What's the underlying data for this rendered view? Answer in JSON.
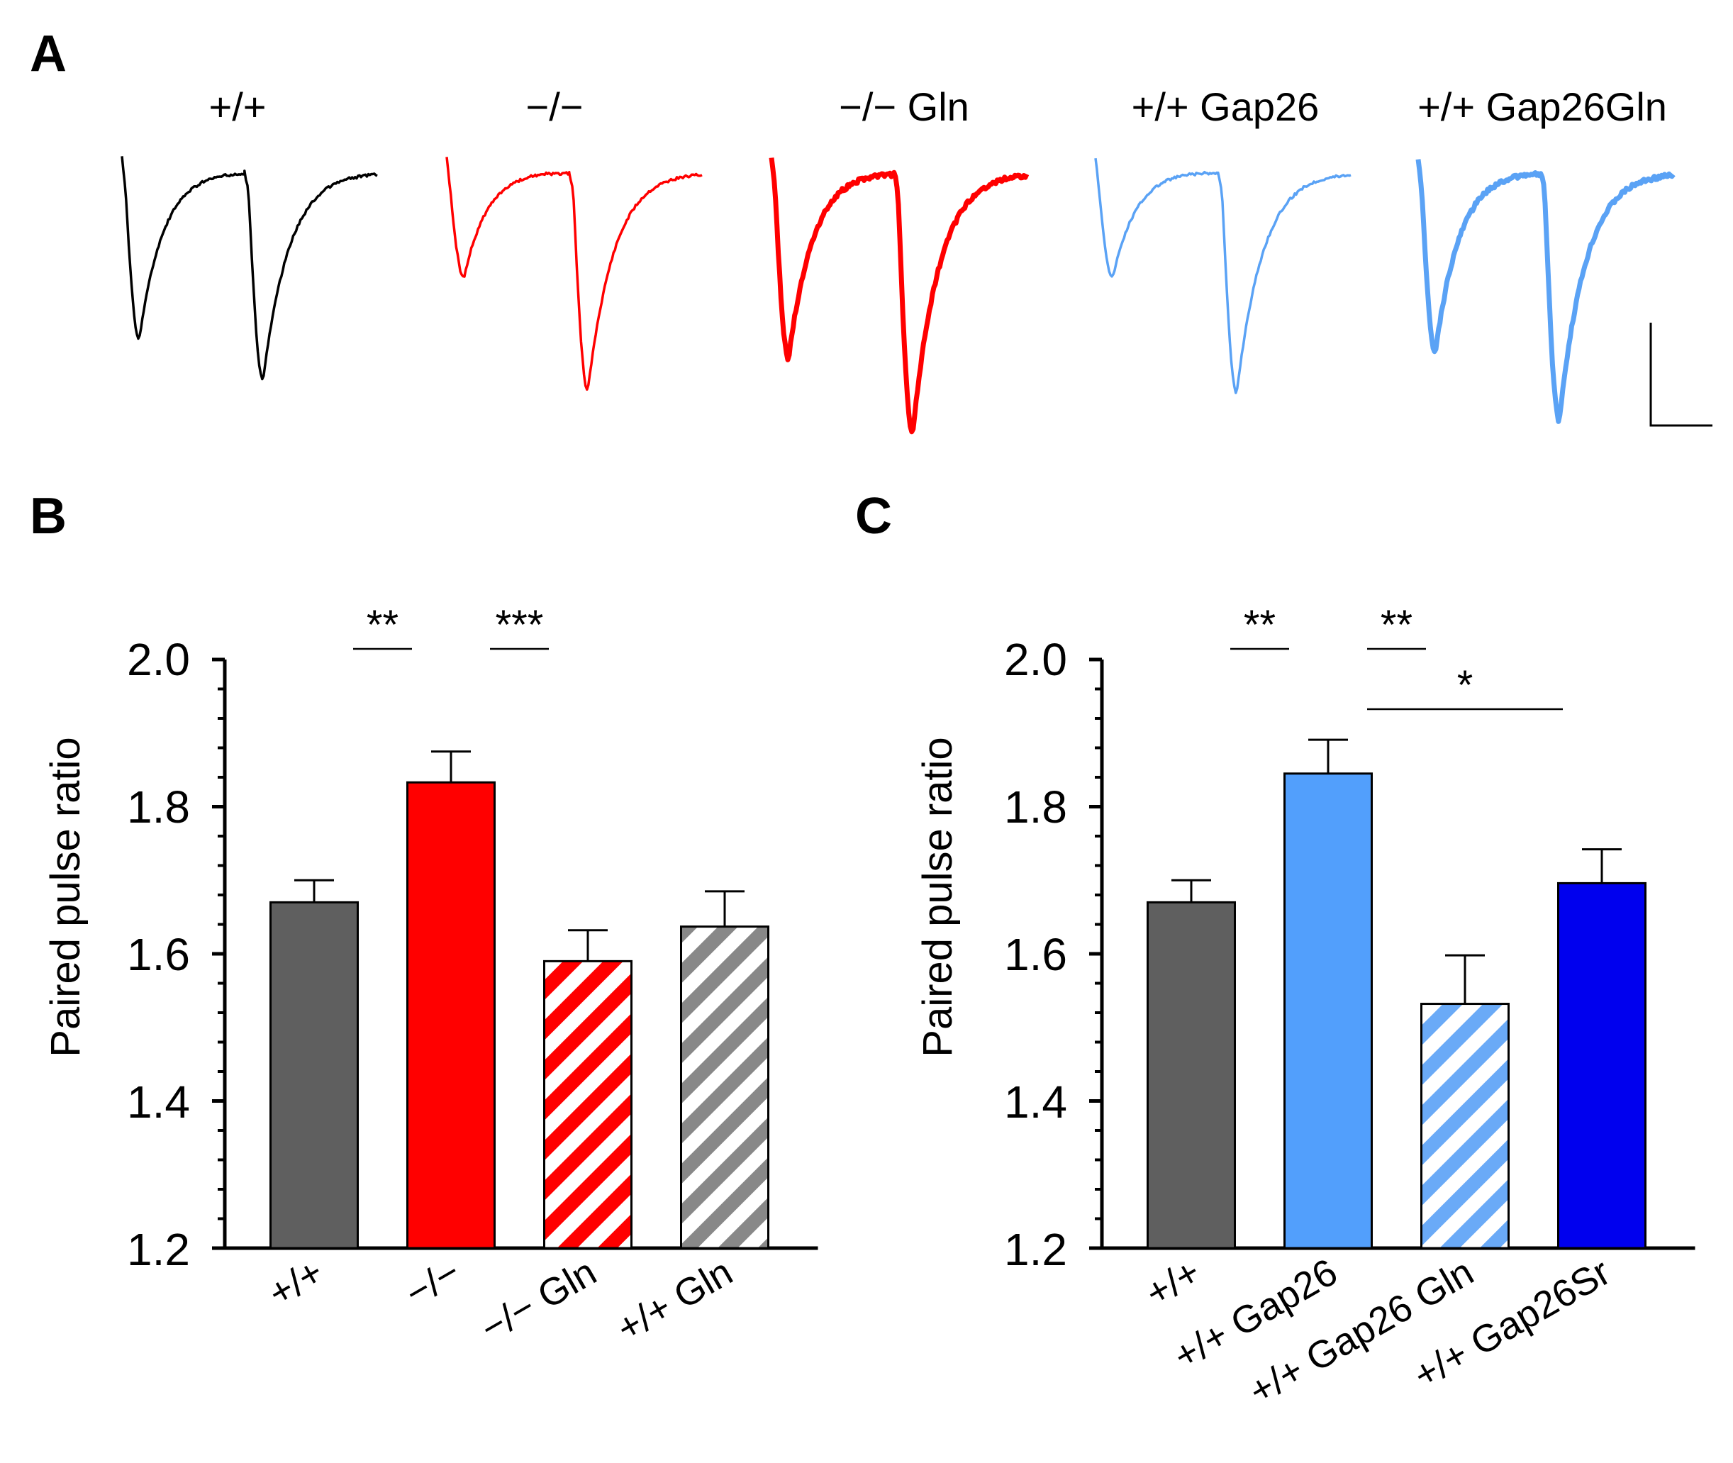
{
  "panels": {
    "a": "A",
    "b": "B",
    "c": "C"
  },
  "colors": {
    "wt": "#5f5f5f",
    "ko": "#ff0000",
    "gap26": "#529ffc",
    "gap26sr": "#0000ee",
    "trace_wt": "#000000",
    "trace_ko": "#ff0000",
    "trace_gap26": "#5aa2f5"
  },
  "traces": [
    {
      "label": "+/+",
      "color": "trace_wt",
      "peak1": 0.55,
      "peak2": 0.7,
      "stroke": "thin"
    },
    {
      "label": "−/−",
      "color": "trace_ko",
      "peak1": 0.32,
      "peak2": 0.74,
      "stroke": "thin"
    },
    {
      "label": "−/− Gln",
      "color": "trace_ko",
      "peak1": 0.62,
      "peak2": 0.9,
      "stroke": "thick"
    },
    {
      "label": "+/+ Gap26",
      "color": "trace_gap26",
      "peak1": 0.32,
      "peak2": 0.75,
      "stroke": "thin"
    },
    {
      "label": "+/+ Gap26Gln",
      "color": "trace_gap26",
      "peak1": 0.6,
      "peak2": 0.85,
      "stroke": "thick"
    }
  ],
  "chart_data": [
    {
      "type": "bar",
      "panel": "B",
      "ylabel": "Paired pulse ratio",
      "ylim": [
        1.2,
        2.0
      ],
      "yticks": [
        "1.2",
        "1.4",
        "1.6",
        "1.8",
        "2.0"
      ],
      "categories": [
        "+/+",
        "−/−",
        "−/− Gln",
        "+/+ Gln"
      ],
      "values": [
        1.67,
        1.833,
        1.59,
        1.637
      ],
      "errors": [
        0.03,
        0.042,
        0.042,
        0.048
      ],
      "bar_colors": [
        "wt",
        "ko",
        "ko",
        "wt"
      ],
      "hatched": [
        false,
        false,
        true,
        true
      ],
      "significance": [
        {
          "from": 0,
          "to": 1,
          "label": "**",
          "level": 1
        },
        {
          "from": 1,
          "to": 2,
          "label": "***",
          "level": 1
        }
      ]
    },
    {
      "type": "bar",
      "panel": "C",
      "ylabel": "Paired pulse ratio",
      "ylim": [
        1.2,
        2.0
      ],
      "yticks": [
        "1.2",
        "1.4",
        "1.6",
        "1.8",
        "2.0"
      ],
      "categories": [
        "+/+",
        "+/+ Gap26",
        "+/+ Gap26 Gln",
        "+/+ Gap26Sr"
      ],
      "values": [
        1.67,
        1.845,
        1.532,
        1.696
      ],
      "errors": [
        0.03,
        0.046,
        0.066,
        0.046
      ],
      "bar_colors": [
        "wt",
        "gap26",
        "gap26",
        "gap26sr"
      ],
      "hatched": [
        false,
        false,
        true,
        false
      ],
      "significance": [
        {
          "from": 0,
          "to": 1,
          "label": "**",
          "level": 1
        },
        {
          "from": 1,
          "to": 2,
          "label": "**",
          "level": 1
        },
        {
          "from": 1,
          "to": 3,
          "label": "*",
          "level": 2
        }
      ]
    }
  ]
}
